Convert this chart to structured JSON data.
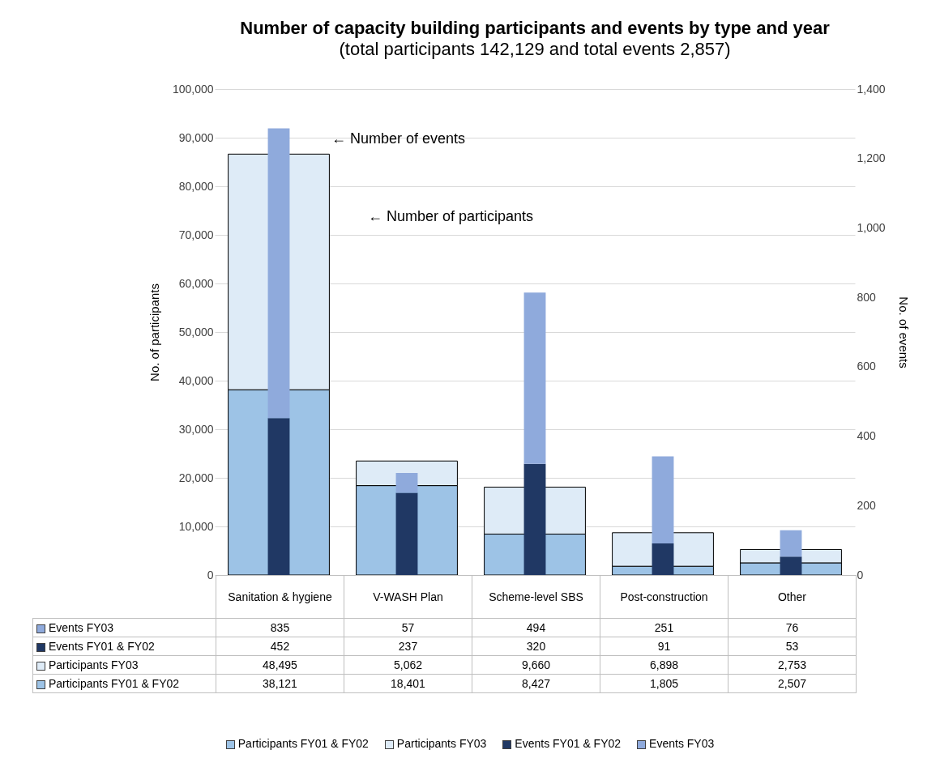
{
  "chart_data": {
    "type": "bar",
    "title": "Number of capacity building participants and events by type and year",
    "subtitle": "(total participants 142,129 and total events 2,857)",
    "categories": [
      "Sanitation & hygiene",
      "V-WASH Plan",
      "Scheme-level SBS",
      "Post-construction",
      "Other"
    ],
    "stacked": true,
    "series": [
      {
        "name": "Participants FY01 & FY02",
        "color": "#9dc3e6",
        "values": [
          38121,
          18401,
          8427,
          1805,
          2507
        ],
        "value_labels": [
          "38,121",
          "18,401",
          "8,427",
          "1,805",
          "2,507"
        ]
      },
      {
        "name": "Participants FY03",
        "color": "#deebf7",
        "values": [
          48495,
          5062,
          9660,
          6898,
          2753
        ],
        "value_labels": [
          "48,495",
          "5,062",
          "9,660",
          "6,898",
          "2,753"
        ]
      },
      {
        "name": "Events FY01 & FY02",
        "color": "#203864",
        "axis": "y2",
        "values": [
          452,
          237,
          320,
          91,
          53
        ],
        "value_labels": [
          "452",
          "237",
          "320",
          "91",
          "53"
        ]
      },
      {
        "name": "Events FY03",
        "color": "#8faadc",
        "axis": "y2",
        "values": [
          835,
          57,
          494,
          251,
          76
        ],
        "value_labels": [
          "835",
          "57",
          "494",
          "251",
          "76"
        ]
      }
    ],
    "ylabel": "No. of participants",
    "y2label": "No. of events",
    "ylim": [
      0,
      100000
    ],
    "yticks": [
      0,
      {
        "value": 10000,
        "label": "10,000"
      },
      {
        "value": 20000,
        "label": "20,000"
      },
      {
        "value": 30000,
        "label": "30,000"
      },
      {
        "value": 40000,
        "label": "40,000"
      },
      {
        "value": 50000,
        "label": "50,000"
      },
      {
        "value": 60000,
        "label": "60,000"
      },
      {
        "value": 70000,
        "label": "70,000"
      },
      {
        "value": 80000,
        "label": "80,000"
      },
      {
        "value": 90000,
        "label": "90,000"
      },
      {
        "value": 100000,
        "label": "100,000"
      }
    ],
    "y2lim": [
      0,
      1400
    ],
    "y2ticks": [
      0,
      200,
      400,
      600,
      800,
      {
        "value": 1000,
        "label": "1,000"
      },
      {
        "value": 1200,
        "label": "1,200"
      },
      {
        "value": 1400,
        "label": "1,400"
      }
    ],
    "annotations": [
      "← Number of events",
      "← Number of participants"
    ],
    "grid": "y",
    "legend": "bottom"
  }
}
